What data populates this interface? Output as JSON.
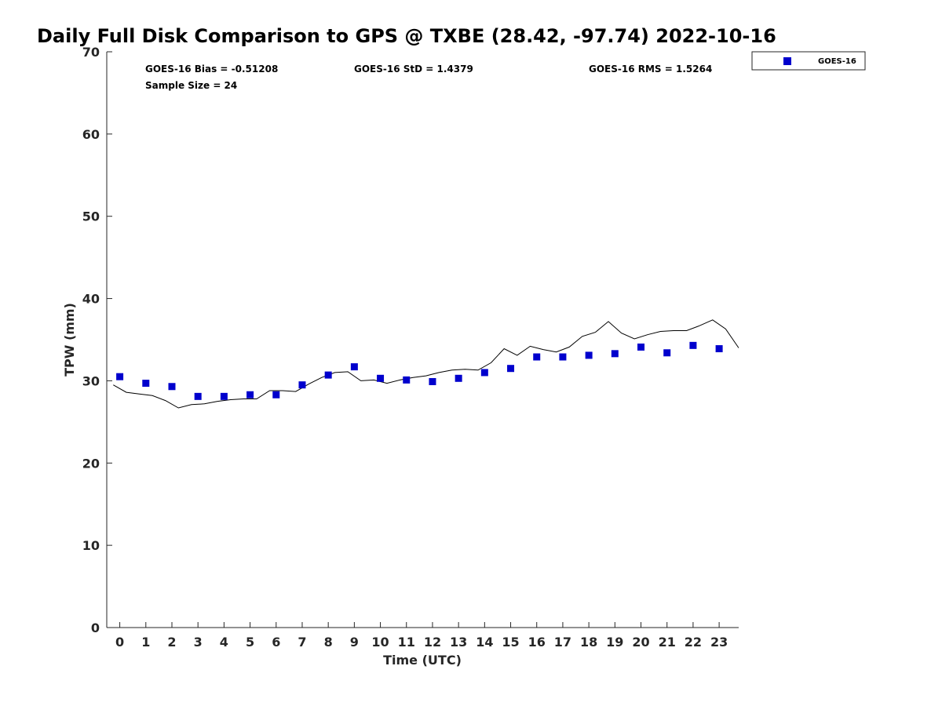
{
  "chart_data": {
    "type": "scatter",
    "title": "Daily Full Disk Comparison to GPS @ TXBE (28.42, -97.74) 2022-10-16",
    "xlabel": "Time (UTC)",
    "ylabel": "TPW (mm)",
    "xlim": [
      -0.5,
      23.75
    ],
    "ylim": [
      0,
      70
    ],
    "xticks": [
      "0",
      "1",
      "2",
      "3",
      "4",
      "5",
      "6",
      "7",
      "8",
      "9",
      "10",
      "11",
      "12",
      "13",
      "14",
      "15",
      "16",
      "17",
      "18",
      "19",
      "20",
      "21",
      "22",
      "23"
    ],
    "yticks": [
      "0",
      "10",
      "20",
      "30",
      "40",
      "50",
      "60",
      "70"
    ],
    "grid": false,
    "legend_position": "outside-top-right",
    "stats": [
      "GOES-16 Bias = -0.51208",
      "GOES-16 StD = 1.4379",
      "GOES-16 RMS = 1.5264",
      "Sample Size = 24"
    ],
    "series": [
      {
        "name": "GOES-16",
        "kind": "markers",
        "color": "#0000cd",
        "marker": "square",
        "x": [
          0,
          1,
          2,
          3,
          4,
          5,
          6,
          7,
          8,
          9,
          10,
          11,
          12,
          13,
          14,
          15,
          16,
          17,
          18,
          19,
          20,
          21,
          22,
          23
        ],
        "y": [
          30.5,
          29.7,
          29.3,
          28.1,
          28.1,
          28.3,
          28.3,
          29.5,
          30.7,
          31.7,
          30.3,
          30.1,
          29.9,
          30.3,
          31.0,
          31.5,
          32.9,
          32.9,
          33.1,
          33.3,
          34.1,
          33.4,
          34.3,
          33.9
        ]
      },
      {
        "kind": "line",
        "color": "#000000",
        "x": [
          -0.25,
          0.25,
          0.75,
          1.25,
          1.75,
          2.25,
          2.75,
          3.25,
          3.75,
          4.25,
          4.75,
          5.25,
          5.75,
          6.25,
          6.75,
          7.25,
          7.75,
          8.25,
          8.75,
          9.25,
          9.75,
          10.25,
          10.75,
          11.25,
          11.75,
          12.25,
          12.75,
          13.25,
          13.75,
          14.25,
          14.75,
          15.25,
          15.75,
          16.25,
          16.75,
          17.25,
          17.75,
          18.25,
          18.75,
          19.25,
          19.75,
          20.25,
          20.75,
          21.25,
          21.75,
          22.25,
          22.75,
          23.25,
          23.75
        ],
        "y": [
          29.5,
          28.6,
          28.4,
          28.2,
          27.6,
          26.7,
          27.1,
          27.2,
          27.5,
          27.7,
          27.8,
          27.8,
          28.8,
          28.8,
          28.7,
          29.6,
          30.4,
          31.0,
          31.1,
          30.0,
          30.1,
          29.7,
          30.1,
          30.4,
          30.6,
          31.0,
          31.3,
          31.4,
          31.3,
          32.2,
          33.9,
          33.1,
          34.2,
          33.8,
          33.5,
          34.1,
          35.4,
          35.9,
          37.2,
          35.8,
          35.1,
          35.6,
          36.0,
          36.1,
          36.1,
          36.7,
          37.4,
          36.3,
          34.0
        ]
      }
    ]
  }
}
